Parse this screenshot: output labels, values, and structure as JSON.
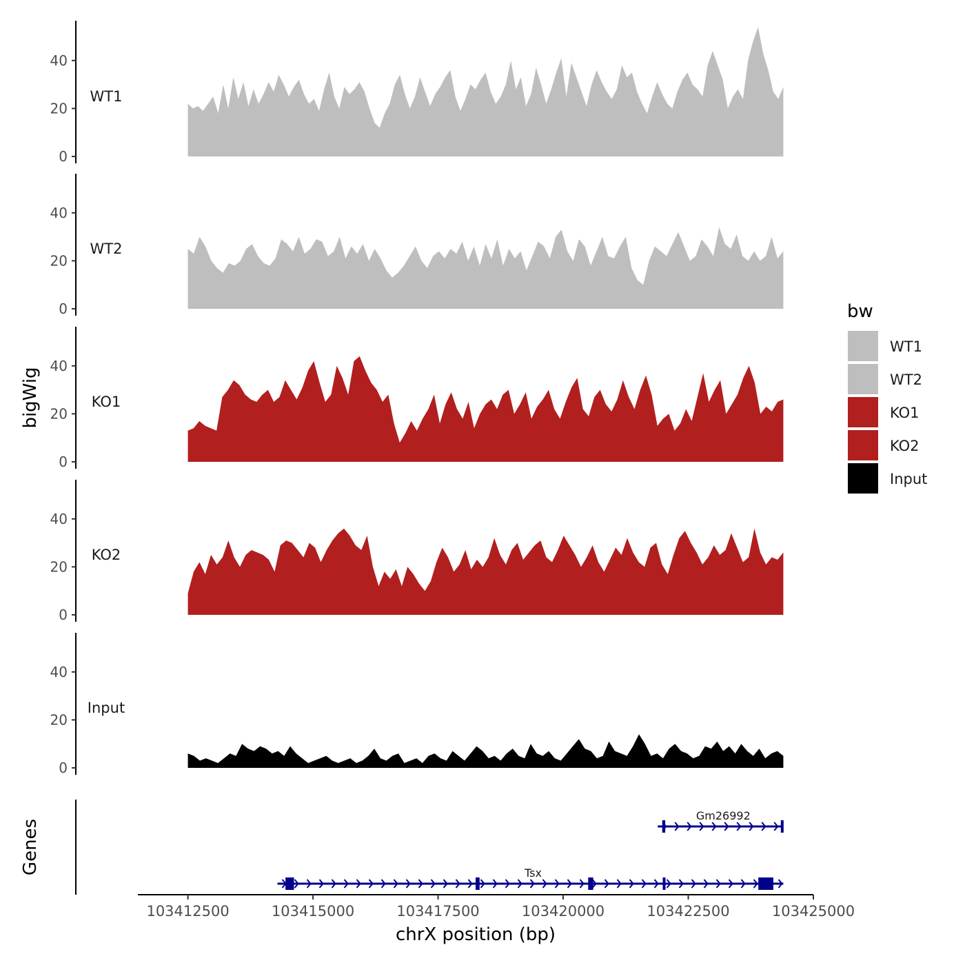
{
  "chart_data": {
    "type": "area",
    "title": "",
    "xlabel": "chrX position (bp)",
    "ylabel": "bigWig",
    "genes_label": "Genes",
    "x_range": [
      103412500,
      103424400
    ],
    "xlim": [
      103411500,
      103425000
    ],
    "x_ticks": [
      103412500,
      103415000,
      103417500,
      103420000,
      103422500,
      103425000
    ],
    "x_tick_labels": [
      "103412500",
      "103415000",
      "103417500",
      "103420000",
      "103422500",
      "103425000"
    ],
    "ylim": [
      0,
      55
    ],
    "y_ticks": [
      0,
      20,
      40
    ],
    "y_tick_labels": [
      "0",
      "20",
      "40"
    ],
    "legend": {
      "title": "bw",
      "position": "right",
      "entries": [
        {
          "label": "WT1",
          "color": "#bebebe"
        },
        {
          "label": "WT2",
          "color": "#bebebe"
        },
        {
          "label": "KO1",
          "color": "#b21f1f"
        },
        {
          "label": "KO2",
          "color": "#b21f1f"
        },
        {
          "label": "Input",
          "color": "#000000"
        }
      ]
    },
    "series": [
      {
        "name": "WT1",
        "color": "#bebebe",
        "values": [
          22,
          20,
          21,
          19,
          22,
          25,
          18,
          30,
          20,
          33,
          24,
          31,
          21,
          28,
          22,
          26,
          31,
          27,
          34,
          30,
          25,
          29,
          32,
          26,
          22,
          24,
          19,
          28,
          35,
          25,
          20,
          29,
          26,
          28,
          31,
          27,
          20,
          14,
          12,
          18,
          22,
          30,
          34,
          26,
          20,
          25,
          33,
          27,
          21,
          26,
          29,
          33,
          36,
          25,
          19,
          24,
          30,
          28,
          32,
          35,
          27,
          22,
          25,
          30,
          40,
          28,
          33,
          21,
          26,
          37,
          30,
          22,
          28,
          35,
          41,
          25,
          39,
          33,
          27,
          21,
          30,
          36,
          31,
          27,
          24,
          28,
          38,
          33,
          35,
          27,
          22,
          18,
          25,
          31,
          26,
          22,
          20,
          27,
          32,
          35,
          30,
          28,
          25,
          38,
          44,
          38,
          32,
          20,
          25,
          28,
          24,
          40,
          48,
          54,
          43,
          36,
          27,
          24,
          29
        ]
      },
      {
        "name": "WT2",
        "color": "#bebebe",
        "values": [
          25,
          23,
          30,
          26,
          20,
          17,
          15,
          19,
          18,
          20,
          25,
          27,
          22,
          19,
          18,
          21,
          29,
          27,
          24,
          30,
          23,
          25,
          29,
          28,
          22,
          24,
          30,
          21,
          26,
          23,
          27,
          20,
          25,
          21,
          16,
          13,
          15,
          18,
          22,
          26,
          20,
          17,
          22,
          24,
          21,
          25,
          23,
          28,
          20,
          26,
          18,
          27,
          21,
          29,
          18,
          25,
          21,
          24,
          16,
          22,
          28,
          26,
          21,
          30,
          33,
          24,
          20,
          29,
          26,
          18,
          24,
          30,
          22,
          21,
          26,
          30,
          17,
          12,
          10,
          20,
          26,
          24,
          22,
          27,
          32,
          26,
          20,
          22,
          29,
          26,
          22,
          34,
          27,
          25,
          31,
          22,
          20,
          24,
          20,
          22,
          30,
          21,
          24
        ]
      },
      {
        "name": "KO1",
        "color": "#b21f1f",
        "values": [
          13,
          14,
          17,
          15,
          14,
          13,
          27,
          30,
          34,
          32,
          28,
          26,
          25,
          28,
          30,
          25,
          27,
          34,
          30,
          26,
          31,
          38,
          42,
          33,
          25,
          28,
          40,
          35,
          28,
          42,
          44,
          38,
          33,
          30,
          25,
          28,
          16,
          8,
          12,
          17,
          13,
          18,
          22,
          28,
          16,
          24,
          29,
          22,
          18,
          25,
          14,
          20,
          24,
          26,
          22,
          28,
          30,
          20,
          24,
          29,
          18,
          23,
          26,
          30,
          22,
          18,
          25,
          31,
          35,
          22,
          19,
          27,
          30,
          24,
          21,
          26,
          34,
          27,
          22,
          30,
          36,
          28,
          15,
          18,
          20,
          13,
          16,
          22,
          17,
          27,
          37,
          25,
          30,
          34,
          20,
          24,
          28,
          35,
          40,
          33,
          20,
          23,
          21,
          25,
          26
        ]
      },
      {
        "name": "KO2",
        "color": "#b21f1f",
        "values": [
          9,
          18,
          22,
          17,
          25,
          21,
          24,
          31,
          24,
          20,
          25,
          27,
          26,
          25,
          23,
          18,
          29,
          31,
          30,
          27,
          24,
          30,
          28,
          22,
          27,
          31,
          34,
          36,
          33,
          29,
          27,
          33,
          20,
          12,
          18,
          15,
          19,
          12,
          20,
          17,
          13,
          10,
          14,
          22,
          28,
          24,
          18,
          21,
          27,
          19,
          23,
          20,
          24,
          32,
          25,
          21,
          27,
          30,
          23,
          26,
          29,
          31,
          24,
          22,
          27,
          33,
          29,
          25,
          20,
          24,
          29,
          22,
          18,
          23,
          28,
          25,
          32,
          26,
          22,
          20,
          28,
          30,
          21,
          17,
          25,
          32,
          35,
          30,
          26,
          21,
          24,
          29,
          25,
          27,
          34,
          28,
          22,
          24,
          36,
          26,
          21,
          24,
          23,
          26
        ]
      },
      {
        "name": "Input",
        "color": "#000000",
        "values": [
          6,
          5,
          3,
          4,
          3,
          2,
          4,
          6,
          5,
          10,
          8,
          7,
          9,
          8,
          6,
          7,
          5,
          9,
          6,
          4,
          2,
          3,
          4,
          5,
          3,
          2,
          3,
          4,
          2,
          3,
          5,
          8,
          4,
          3,
          5,
          6,
          2,
          3,
          4,
          2,
          5,
          6,
          4,
          3,
          7,
          5,
          3,
          6,
          9,
          7,
          4,
          5,
          3,
          6,
          8,
          5,
          4,
          10,
          6,
          5,
          7,
          4,
          3,
          6,
          9,
          12,
          8,
          7,
          4,
          5,
          11,
          7,
          6,
          5,
          9,
          14,
          10,
          5,
          6,
          4,
          8,
          10,
          7,
          6,
          4,
          5,
          9,
          8,
          11,
          7,
          9,
          6,
          10,
          7,
          5,
          8,
          4,
          6,
          7,
          5
        ]
      }
    ],
    "genes": [
      {
        "name": "Gm26992",
        "strand": "+",
        "start": 103422000,
        "end": 103424400,
        "exons": [
          [
            103421980,
            103422040
          ],
          [
            103424350,
            103424400
          ]
        ]
      },
      {
        "name": "Tsx",
        "strand": "+",
        "start": 103414400,
        "end": 103424400,
        "exons": [
          [
            103414450,
            103414620
          ],
          [
            103418250,
            103418330
          ],
          [
            103420500,
            103420600
          ],
          [
            103421990,
            103422040
          ],
          [
            103423900,
            103424200
          ]
        ]
      }
    ]
  }
}
